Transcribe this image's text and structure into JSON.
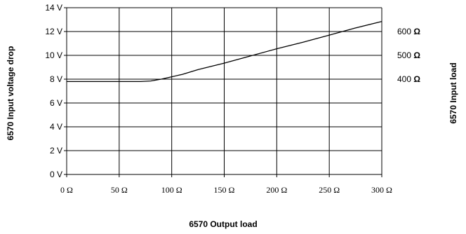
{
  "chart_data": {
    "type": "line",
    "xlabel": "6570  Output load",
    "ylabel": "6570  Input voltage drop",
    "y2label": "6570 Input load",
    "xlim": [
      0,
      300
    ],
    "ylim": [
      0,
      14
    ],
    "x_ticks": [
      "0 Ω",
      "50 Ω",
      "100 Ω",
      "150 Ω",
      "200 Ω",
      "250 Ω",
      "300 Ω"
    ],
    "x_tick_values": [
      0,
      50,
      100,
      150,
      200,
      250,
      300
    ],
    "y_ticks": [
      "0 V",
      "2 V",
      "4 V",
      "6 V",
      "8 V",
      "10 V",
      "12 V",
      "14 V"
    ],
    "y_tick_values": [
      0,
      2,
      4,
      6,
      8,
      10,
      12,
      14
    ],
    "y2_ticks": [
      {
        "label": "400 Ω",
        "at": 8
      },
      {
        "label": "500 Ω",
        "at": 10
      },
      {
        "label": "600 Ω",
        "at": 12
      }
    ],
    "grid": true,
    "series": [
      {
        "color": "#000000",
        "x": [
          0,
          70,
          80,
          90,
          100,
          110,
          125,
          150,
          175,
          200,
          225,
          250,
          275,
          300
        ],
        "y": [
          7.8,
          7.8,
          7.85,
          8.0,
          8.2,
          8.4,
          8.8,
          9.35,
          9.95,
          10.55,
          11.1,
          11.7,
          12.3,
          12.85
        ]
      }
    ]
  }
}
